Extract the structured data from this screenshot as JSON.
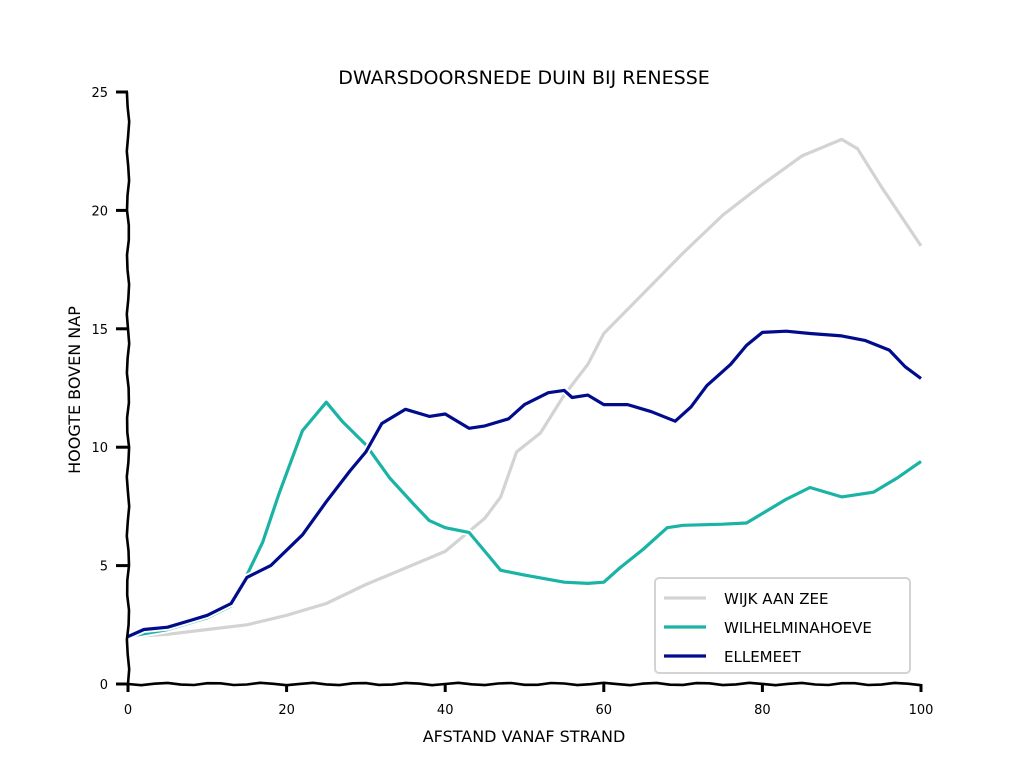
{
  "chart_data": {
    "type": "line",
    "title": "DWARSDOORSNEDE DUIN BIJ RENESSE",
    "xlabel": "AFSTAND VANAF STRAND",
    "ylabel": "HOOGTE BOVEN NAP",
    "xlim": [
      0,
      100
    ],
    "ylim": [
      0,
      25
    ],
    "xticks": [
      0,
      20,
      40,
      60,
      80,
      100
    ],
    "yticks": [
      0,
      5,
      10,
      15,
      20,
      25
    ],
    "grid": false,
    "legend_position": "bottom-right",
    "series": [
      {
        "name": "WIJK AAN ZEE",
        "color": "#d3d3d3",
        "x": [
          0,
          5,
          10,
          15,
          20,
          25,
          30,
          35,
          40,
          45,
          47,
          49,
          52,
          55,
          58,
          60,
          65,
          70,
          75,
          80,
          85,
          90,
          92,
          95,
          100
        ],
        "y": [
          2.0,
          2.1,
          2.3,
          2.5,
          2.9,
          3.4,
          4.2,
          4.9,
          5.6,
          7.0,
          7.9,
          9.8,
          10.6,
          12.2,
          13.5,
          14.8,
          16.5,
          18.2,
          19.8,
          21.1,
          22.3,
          23.0,
          22.6,
          21.0,
          18.5
        ]
      },
      {
        "name": "WILHELMINAHOEVE",
        "color": "#1ab3a6",
        "x": [
          0,
          5,
          10,
          13,
          15,
          17,
          19,
          21,
          22,
          25,
          27,
          30,
          33,
          36,
          38,
          40,
          43,
          45,
          47,
          50,
          55,
          58,
          60,
          62,
          65,
          68,
          70,
          75,
          78,
          80,
          83,
          86,
          90,
          94,
          97,
          100
        ],
        "y": [
          2.0,
          2.3,
          2.8,
          3.3,
          4.6,
          6.0,
          8.0,
          9.8,
          10.7,
          11.9,
          11.1,
          10.1,
          8.7,
          7.6,
          6.9,
          6.6,
          6.4,
          5.6,
          4.8,
          4.6,
          4.3,
          4.25,
          4.3,
          4.9,
          5.7,
          6.6,
          6.7,
          6.75,
          6.8,
          7.2,
          7.8,
          8.3,
          7.9,
          8.1,
          8.7,
          9.4
        ]
      },
      {
        "name": "ELLEMEET",
        "color": "#000c8c",
        "x": [
          0,
          2,
          5,
          8,
          10,
          13,
          15,
          18,
          22,
          25,
          28,
          30,
          32,
          35,
          38,
          40,
          43,
          45,
          48,
          50,
          53,
          55,
          56,
          58,
          60,
          63,
          66,
          69,
          71,
          73,
          76,
          78,
          80,
          83,
          86,
          90,
          93,
          96,
          98,
          100
        ],
        "y": [
          2.0,
          2.3,
          2.4,
          2.7,
          2.9,
          3.4,
          4.5,
          5.0,
          6.3,
          7.7,
          9.0,
          9.8,
          11.0,
          11.6,
          11.3,
          11.4,
          10.8,
          10.9,
          11.2,
          11.8,
          12.3,
          12.4,
          12.1,
          12.2,
          11.8,
          11.8,
          11.5,
          11.1,
          11.7,
          12.6,
          13.5,
          14.3,
          14.85,
          14.9,
          14.8,
          14.7,
          14.5,
          14.1,
          13.4,
          12.9
        ]
      }
    ]
  }
}
